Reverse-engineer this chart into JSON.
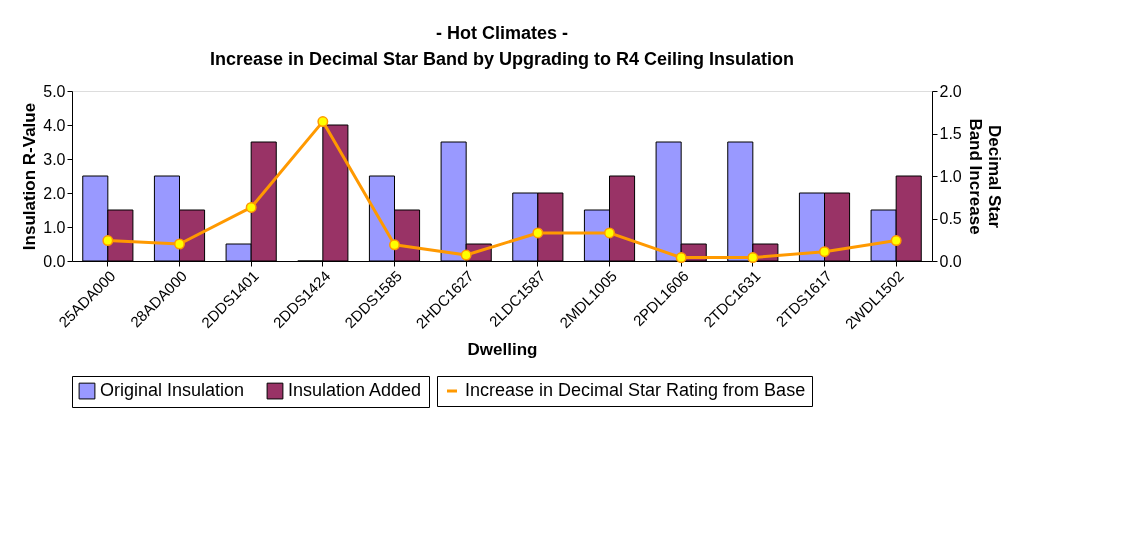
{
  "chart_data": {
    "type": "bar",
    "title": "- Hot Climates -",
    "subtitle": "Increase in Decimal Star Band by Upgrading to R4 Ceiling Insulation",
    "xlabel": "Dwelling",
    "ylabel": "Insulation R-Value",
    "y2label": "Decimal Star Band Increase",
    "categories": [
      "25ADA000",
      "28ADA000",
      "2DDS1401",
      "2DDS1424",
      "2DDS1585",
      "2HDC1627",
      "2LDC1587",
      "2MDL1005",
      "2PDL1606",
      "2TDC1631",
      "2TDS1617",
      "2WDL1502"
    ],
    "series": [
      {
        "name": "Original Insulation",
        "color": "#9999ff",
        "values": [
          2.5,
          2.5,
          0.5,
          0,
          2.5,
          3.5,
          2.0,
          1.5,
          3.5,
          3.5,
          2.0,
          1.5
        ]
      },
      {
        "name": "Insulation Added",
        "color": "#993366",
        "values": [
          1.5,
          1.5,
          3.5,
          4.0,
          1.5,
          0.5,
          2.0,
          2.5,
          0.5,
          0.5,
          2.0,
          2.5
        ]
      },
      {
        "name": "Increase in Decimal Star Rating from Base",
        "color": "#ff9900",
        "type": "line",
        "axis": "y2",
        "marker": "circle",
        "values": [
          0.24,
          0.2,
          0.63,
          1.64,
          0.19,
          0.07,
          0.33,
          0.33,
          0.04,
          0.04,
          0.11,
          0.24
        ]
      }
    ],
    "ylim": [
      0,
      5
    ],
    "yticks": [
      {
        "value": 0,
        "label": "0.0"
      },
      {
        "value": 1,
        "label": "1.0"
      },
      {
        "value": 2,
        "label": "2.0"
      },
      {
        "value": 3,
        "label": "3.0"
      },
      {
        "value": 4,
        "label": "4.0"
      },
      {
        "value": 5,
        "label": "5.0"
      }
    ],
    "y2lim": [
      0,
      2
    ],
    "y2ticks": [
      {
        "value": 0,
        "label": "0.0"
      },
      {
        "value": 0.5,
        "label": "0.5"
      },
      {
        "value": 1,
        "label": "1.0"
      },
      {
        "value": 1.5,
        "label": "1.5"
      },
      {
        "value": 2,
        "label": "2.0"
      }
    ],
    "grid": false,
    "legend": "bottom"
  }
}
